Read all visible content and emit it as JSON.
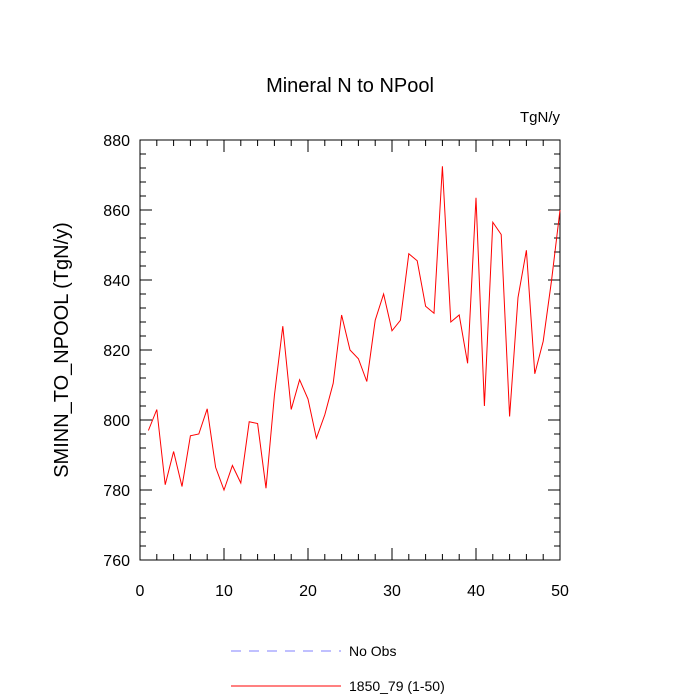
{
  "chart_data": {
    "type": "line",
    "title": "Mineral N to NPool",
    "units": "TgN/y",
    "xlabel": "",
    "ylabel": "SMINN_TO_NPOOL  (TgN/y)",
    "xlim": [
      0,
      50
    ],
    "ylim": [
      760,
      880
    ],
    "xticks": [
      0,
      10,
      20,
      30,
      40,
      50
    ],
    "yticks": [
      760,
      780,
      800,
      820,
      840,
      860,
      880
    ],
    "x": [
      1,
      2,
      3,
      4,
      5,
      6,
      7,
      8,
      9,
      10,
      11,
      12,
      13,
      14,
      15,
      16,
      17,
      18,
      19,
      20,
      21,
      22,
      23,
      24,
      25,
      26,
      27,
      28,
      29,
      30,
      31,
      32,
      33,
      34,
      35,
      36,
      37,
      38,
      39,
      40,
      41,
      42,
      43,
      44,
      45,
      46,
      47,
      48,
      49,
      50
    ],
    "series": [
      {
        "name": "1850_79 (1-50)",
        "color": "#ff0000",
        "style": "solid",
        "values": [
          797,
          803,
          781.5,
          791,
          781,
          795.5,
          796,
          803.2,
          786.5,
          780,
          787,
          782,
          799.5,
          799,
          780.5,
          807,
          826.8,
          803,
          811.5,
          806,
          794.8,
          801.5,
          810.5,
          830,
          820,
          817.5,
          811,
          828.5,
          836,
          825.5,
          828.5,
          847.5,
          845.5,
          832.5,
          830.5,
          872.5,
          828,
          830,
          816.2,
          863.5,
          804,
          856.5,
          853,
          801,
          835,
          848.5,
          813.2,
          822.5,
          840,
          860
        ]
      }
    ],
    "legend": [
      {
        "label": "No Obs",
        "color": "#8080ff",
        "style": "dashed"
      },
      {
        "label": "1850_79 (1-50)",
        "color": "#ff0000",
        "style": "solid"
      }
    ],
    "legend_position": "bottom-center",
    "grid": false
  }
}
